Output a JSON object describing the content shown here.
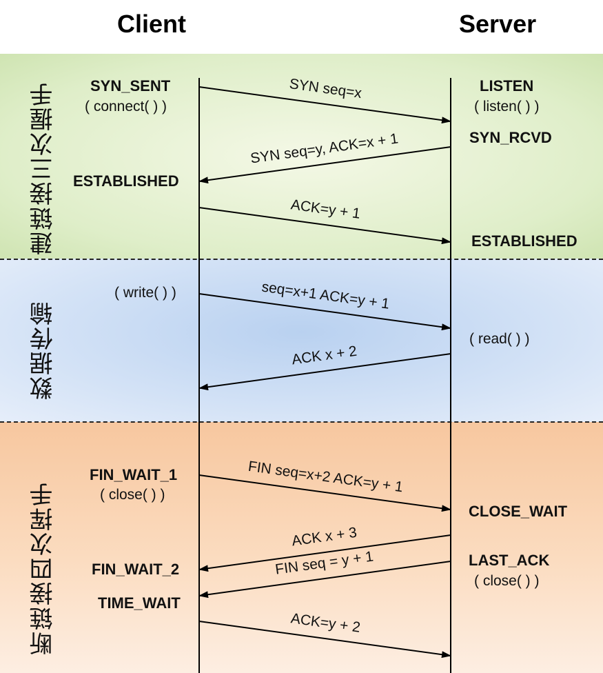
{
  "headers": {
    "client": "Client",
    "server": "Server"
  },
  "phases": [
    {
      "label": "建链接三次握手",
      "color": "#dfeec9"
    },
    {
      "label": "数据传输",
      "color": "#c9dbf3"
    },
    {
      "label": "断链接四次挥手",
      "color": "#f9d2b0"
    }
  ],
  "client_states": [
    {
      "state": "SYN_SENT",
      "call": "( connect( ) )"
    },
    {
      "state": "ESTABLISHED"
    },
    {
      "call": "( write( ) )"
    },
    {
      "state": "FIN_WAIT_1",
      "call": "( close( ) )"
    },
    {
      "state": "FIN_WAIT_2"
    },
    {
      "state": "TIME_WAIT"
    }
  ],
  "server_states": [
    {
      "state": "LISTEN",
      "call": "( listen( ) )"
    },
    {
      "state": "SYN_RCVD"
    },
    {
      "state": "ESTABLISHED"
    },
    {
      "call": "( read( ) )"
    },
    {
      "state": "CLOSE_WAIT"
    },
    {
      "state": "LAST_ACK",
      "call": "( close( ) )"
    }
  ],
  "messages": [
    {
      "label": "SYN seq=x",
      "direction": "client-to-server"
    },
    {
      "label": "SYN seq=y, ACK=x + 1",
      "direction": "server-to-client"
    },
    {
      "label": "ACK=y + 1",
      "direction": "client-to-server"
    },
    {
      "label": "seq=x+1 ACK=y + 1",
      "direction": "client-to-server"
    },
    {
      "label": "ACK x + 2",
      "direction": "server-to-client"
    },
    {
      "label": "FIN seq=x+2 ACK=y + 1",
      "direction": "client-to-server"
    },
    {
      "label": "ACK x + 3",
      "direction": "server-to-client"
    },
    {
      "label": "FIN seq = y + 1",
      "direction": "server-to-client"
    },
    {
      "label": "ACK=y + 2",
      "direction": "client-to-server"
    }
  ]
}
